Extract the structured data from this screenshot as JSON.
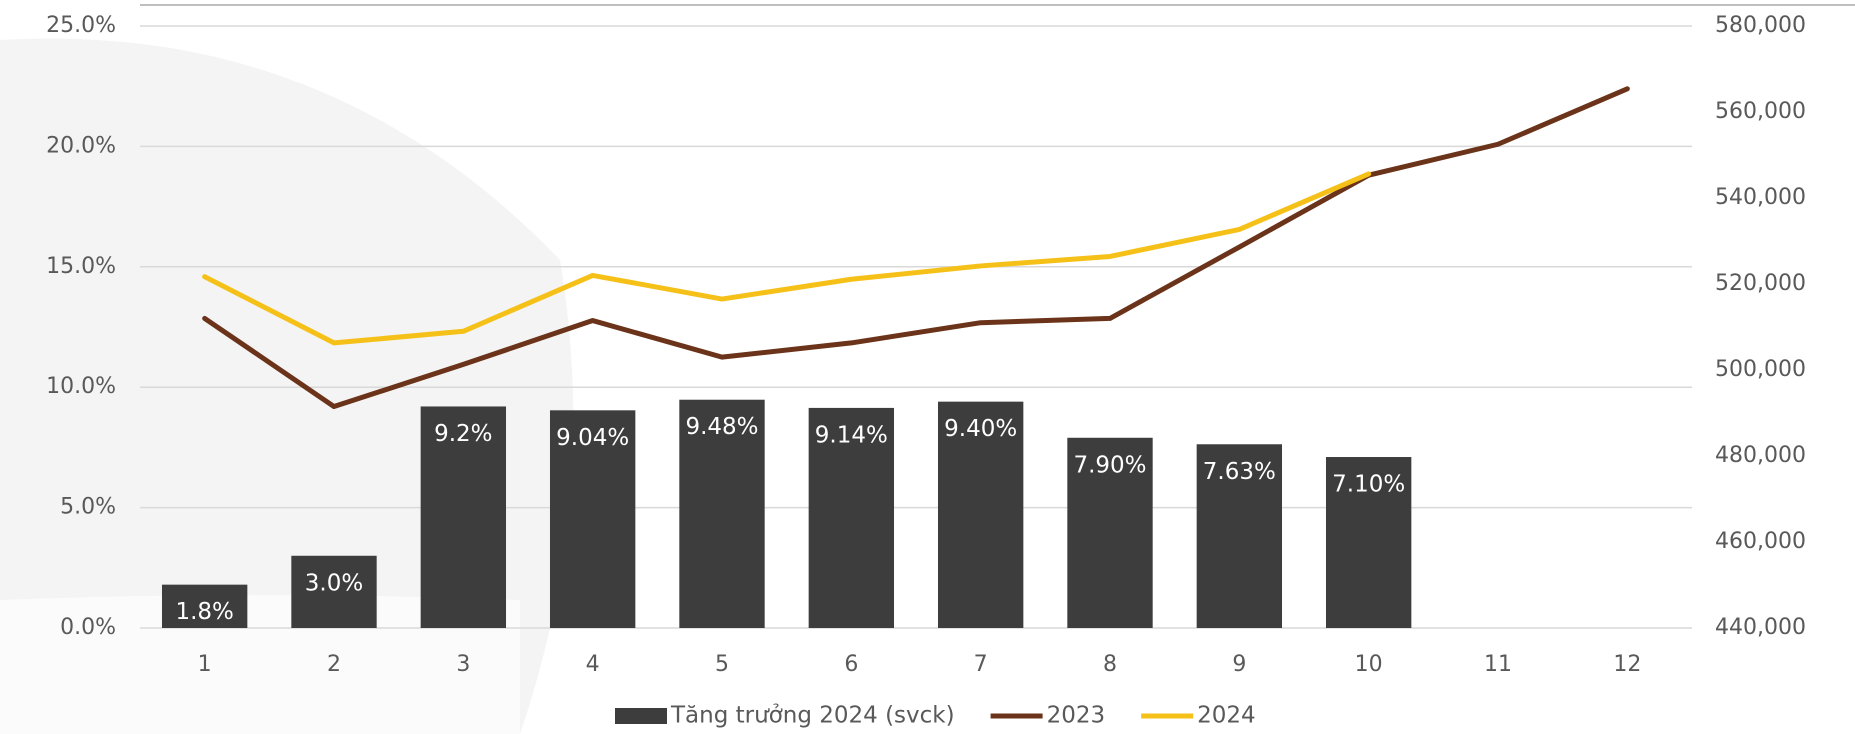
{
  "chart_data": {
    "type": "bar",
    "categories": [
      "1",
      "2",
      "3",
      "4",
      "5",
      "6",
      "7",
      "8",
      "9",
      "10",
      "11",
      "12"
    ],
    "series": [
      {
        "name": "Tăng trưởng 2024 (svck)",
        "type": "bar",
        "color": "#3d3d3d",
        "values": [
          1.8,
          3.0,
          9.2,
          9.04,
          9.48,
          9.14,
          9.4,
          7.9,
          7.63,
          7.1,
          null,
          null
        ],
        "value_labels": [
          "1.8%",
          "3.0%",
          "9.2%",
          "9.04%",
          "9.48%",
          "9.14%",
          "9.40%",
          "7.90%",
          "7.63%",
          "7.10%",
          null,
          null
        ]
      },
      {
        "name": "2023",
        "type": "line",
        "axis": "y2",
        "color": "#6b3319",
        "values": [
          512000,
          491500,
          501300,
          511500,
          503000,
          506300,
          511000,
          512000,
          528600,
          545300,
          552500,
          565400
        ]
      },
      {
        "name": "2024",
        "type": "line",
        "axis": "y2",
        "color": "#f5c118",
        "values": [
          521700,
          506300,
          509000,
          522000,
          516500,
          521100,
          524200,
          526400,
          532700,
          545600,
          null,
          null
        ]
      }
    ],
    "ylim": [
      0,
      25
    ],
    "yticks": [
      {
        "value": 0,
        "label": "0.0%"
      },
      {
        "value": 5,
        "label": "5.0%"
      },
      {
        "value": 10,
        "label": "10.0%"
      },
      {
        "value": 15,
        "label": "15.0%"
      },
      {
        "value": 20,
        "label": "20.0%"
      },
      {
        "value": 25,
        "label": "25.0%"
      }
    ],
    "y2lim": [
      440000,
      580000
    ],
    "y2ticks": [
      {
        "value": 440000,
        "label": "440,000"
      },
      {
        "value": 460000,
        "label": "460,000"
      },
      {
        "value": 480000,
        "label": "480,000"
      },
      {
        "value": 500000,
        "label": "500,000"
      },
      {
        "value": 520000,
        "label": "520,000"
      },
      {
        "value": 540000,
        "label": "540,000"
      },
      {
        "value": 560000,
        "label": "560,000"
      },
      {
        "value": 580000,
        "label": "580,000"
      }
    ],
    "grid": true,
    "legend": "bottom"
  }
}
